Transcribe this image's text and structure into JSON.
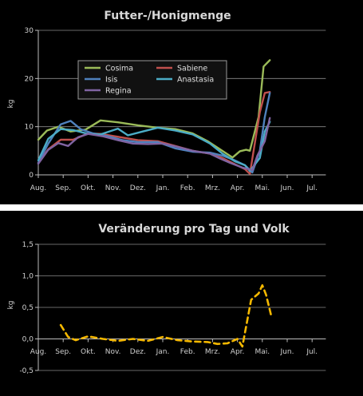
{
  "chart_data": [
    {
      "type": "line",
      "title": "Futter-/Honigmenge",
      "ylabel": "kg",
      "xlabel": "",
      "ylim": [
        0,
        30
      ],
      "yticks": [
        "0",
        "10",
        "20",
        "30"
      ],
      "xticks": [
        "Aug.",
        "Sep.",
        "Okt.",
        "Nov.",
        "Dez.",
        "Jan.",
        "Feb.",
        "Mrz.",
        "Apr.",
        "Mai.",
        "Jun.",
        "Jul."
      ],
      "x_unit": "month index from Aug.",
      "grid": "horizontal",
      "legend_position": "upper-center",
      "series": [
        {
          "name": "Cosima",
          "color": "#9bbb59",
          "x": [
            0,
            0.35,
            0.8,
            1.3,
            1.9,
            2.5,
            3.2,
            4.0,
            4.8,
            5.5,
            6.2,
            6.8,
            7.3,
            7.8,
            8.1,
            8.35,
            8.5,
            8.85,
            9.05,
            9.3
          ],
          "y": [
            7.3,
            9.2,
            10.0,
            9.0,
            9.4,
            11.3,
            10.9,
            10.3,
            9.8,
            9.5,
            8.6,
            7.0,
            5.3,
            3.6,
            4.9,
            5.2,
            5.0,
            12.0,
            22.5,
            23.8
          ]
        },
        {
          "name": "Sabiene",
          "color": "#c0504d",
          "x": [
            0,
            0.4,
            0.9,
            1.4,
            2.0,
            2.5,
            3.2,
            4.0,
            4.8,
            5.5,
            6.2,
            6.9,
            7.4,
            7.9,
            8.3,
            8.5,
            8.9,
            9.1,
            9.3
          ],
          "y": [
            2.5,
            5.3,
            7.3,
            7.3,
            8.6,
            8.5,
            7.9,
            7.2,
            7.0,
            6.0,
            5.0,
            4.4,
            3.5,
            2.2,
            1.2,
            0.2,
            13.0,
            17.0,
            17.2
          ]
        },
        {
          "name": "Isis",
          "color": "#4f81bd",
          "x": [
            0,
            0.4,
            0.9,
            1.3,
            1.7,
            2.2,
            2.8,
            3.4,
            4.0,
            4.8,
            5.5,
            6.2,
            6.9,
            7.4,
            7.9,
            8.3,
            8.6,
            8.9,
            9.1,
            9.3
          ],
          "y": [
            2.5,
            6.5,
            10.5,
            11.2,
            9.5,
            8.6,
            8.0,
            7.2,
            6.8,
            6.8,
            5.5,
            4.8,
            4.6,
            4.0,
            3.0,
            2.0,
            0.5,
            5.0,
            12.0,
            17.0
          ]
        },
        {
          "name": "Anastasia",
          "color": "#4bacc6",
          "x": [
            0,
            0.4,
            0.9,
            1.4,
            2.0,
            2.5,
            3.2,
            3.6,
            4.2,
            4.8,
            5.5,
            6.2,
            6.9,
            7.4,
            7.9,
            8.3,
            8.5,
            8.9,
            9.1,
            9.3
          ],
          "y": [
            3.0,
            7.5,
            9.5,
            9.3,
            8.5,
            8.4,
            9.6,
            8.2,
            9.0,
            9.8,
            9.2,
            8.4,
            6.5,
            4.4,
            2.8,
            2.0,
            0.8,
            3.5,
            9.0,
            11.0
          ]
        },
        {
          "name": "Regina",
          "color": "#8064a2",
          "x": [
            0,
            0.4,
            0.8,
            1.2,
            1.6,
            2.0,
            2.6,
            3.2,
            3.8,
            4.4,
            5.0,
            5.6,
            6.2,
            6.9,
            7.3,
            7.7,
            8.2,
            8.6,
            8.8,
            9.1,
            9.3
          ],
          "y": [
            2.3,
            5.2,
            6.6,
            6.0,
            7.8,
            8.5,
            8.0,
            7.2,
            6.5,
            6.4,
            6.5,
            5.8,
            5.0,
            4.4,
            3.4,
            2.5,
            1.5,
            1.0,
            4.0,
            7.0,
            11.8
          ]
        }
      ]
    },
    {
      "type": "line",
      "title": "Veränderung pro Tag und Volk",
      "ylabel": "kg",
      "xlabel": "",
      "ylim": [
        -0.5,
        1.5
      ],
      "yticks": [
        "-0,5",
        "0,0",
        "0,5",
        "1,0",
        "1,5"
      ],
      "xticks": [
        "Aug.",
        "Sep.",
        "Okt.",
        "Nov.",
        "Dez.",
        "Jan.",
        "Feb.",
        "Mrz.",
        "Apr.",
        "Mai.",
        "Jun.",
        "Jul."
      ],
      "x_unit": "month index from Aug.",
      "grid": "horizontal",
      "series": [
        {
          "color": "#f5b800",
          "style": "dashed",
          "x": [
            0.9,
            1.2,
            1.5,
            2.0,
            2.6,
            3.2,
            3.8,
            4.4,
            5.0,
            5.6,
            6.2,
            6.8,
            7.2,
            7.6,
            8.0,
            8.2,
            8.55,
            8.85,
            9.0,
            9.15,
            9.35
          ],
          "y": [
            0.22,
            0.03,
            -0.02,
            0.04,
            0.0,
            -0.03,
            0.0,
            -0.03,
            0.03,
            -0.02,
            -0.04,
            -0.05,
            -0.08,
            -0.07,
            0.0,
            -0.12,
            0.62,
            0.72,
            0.85,
            0.7,
            0.38
          ]
        }
      ]
    }
  ]
}
